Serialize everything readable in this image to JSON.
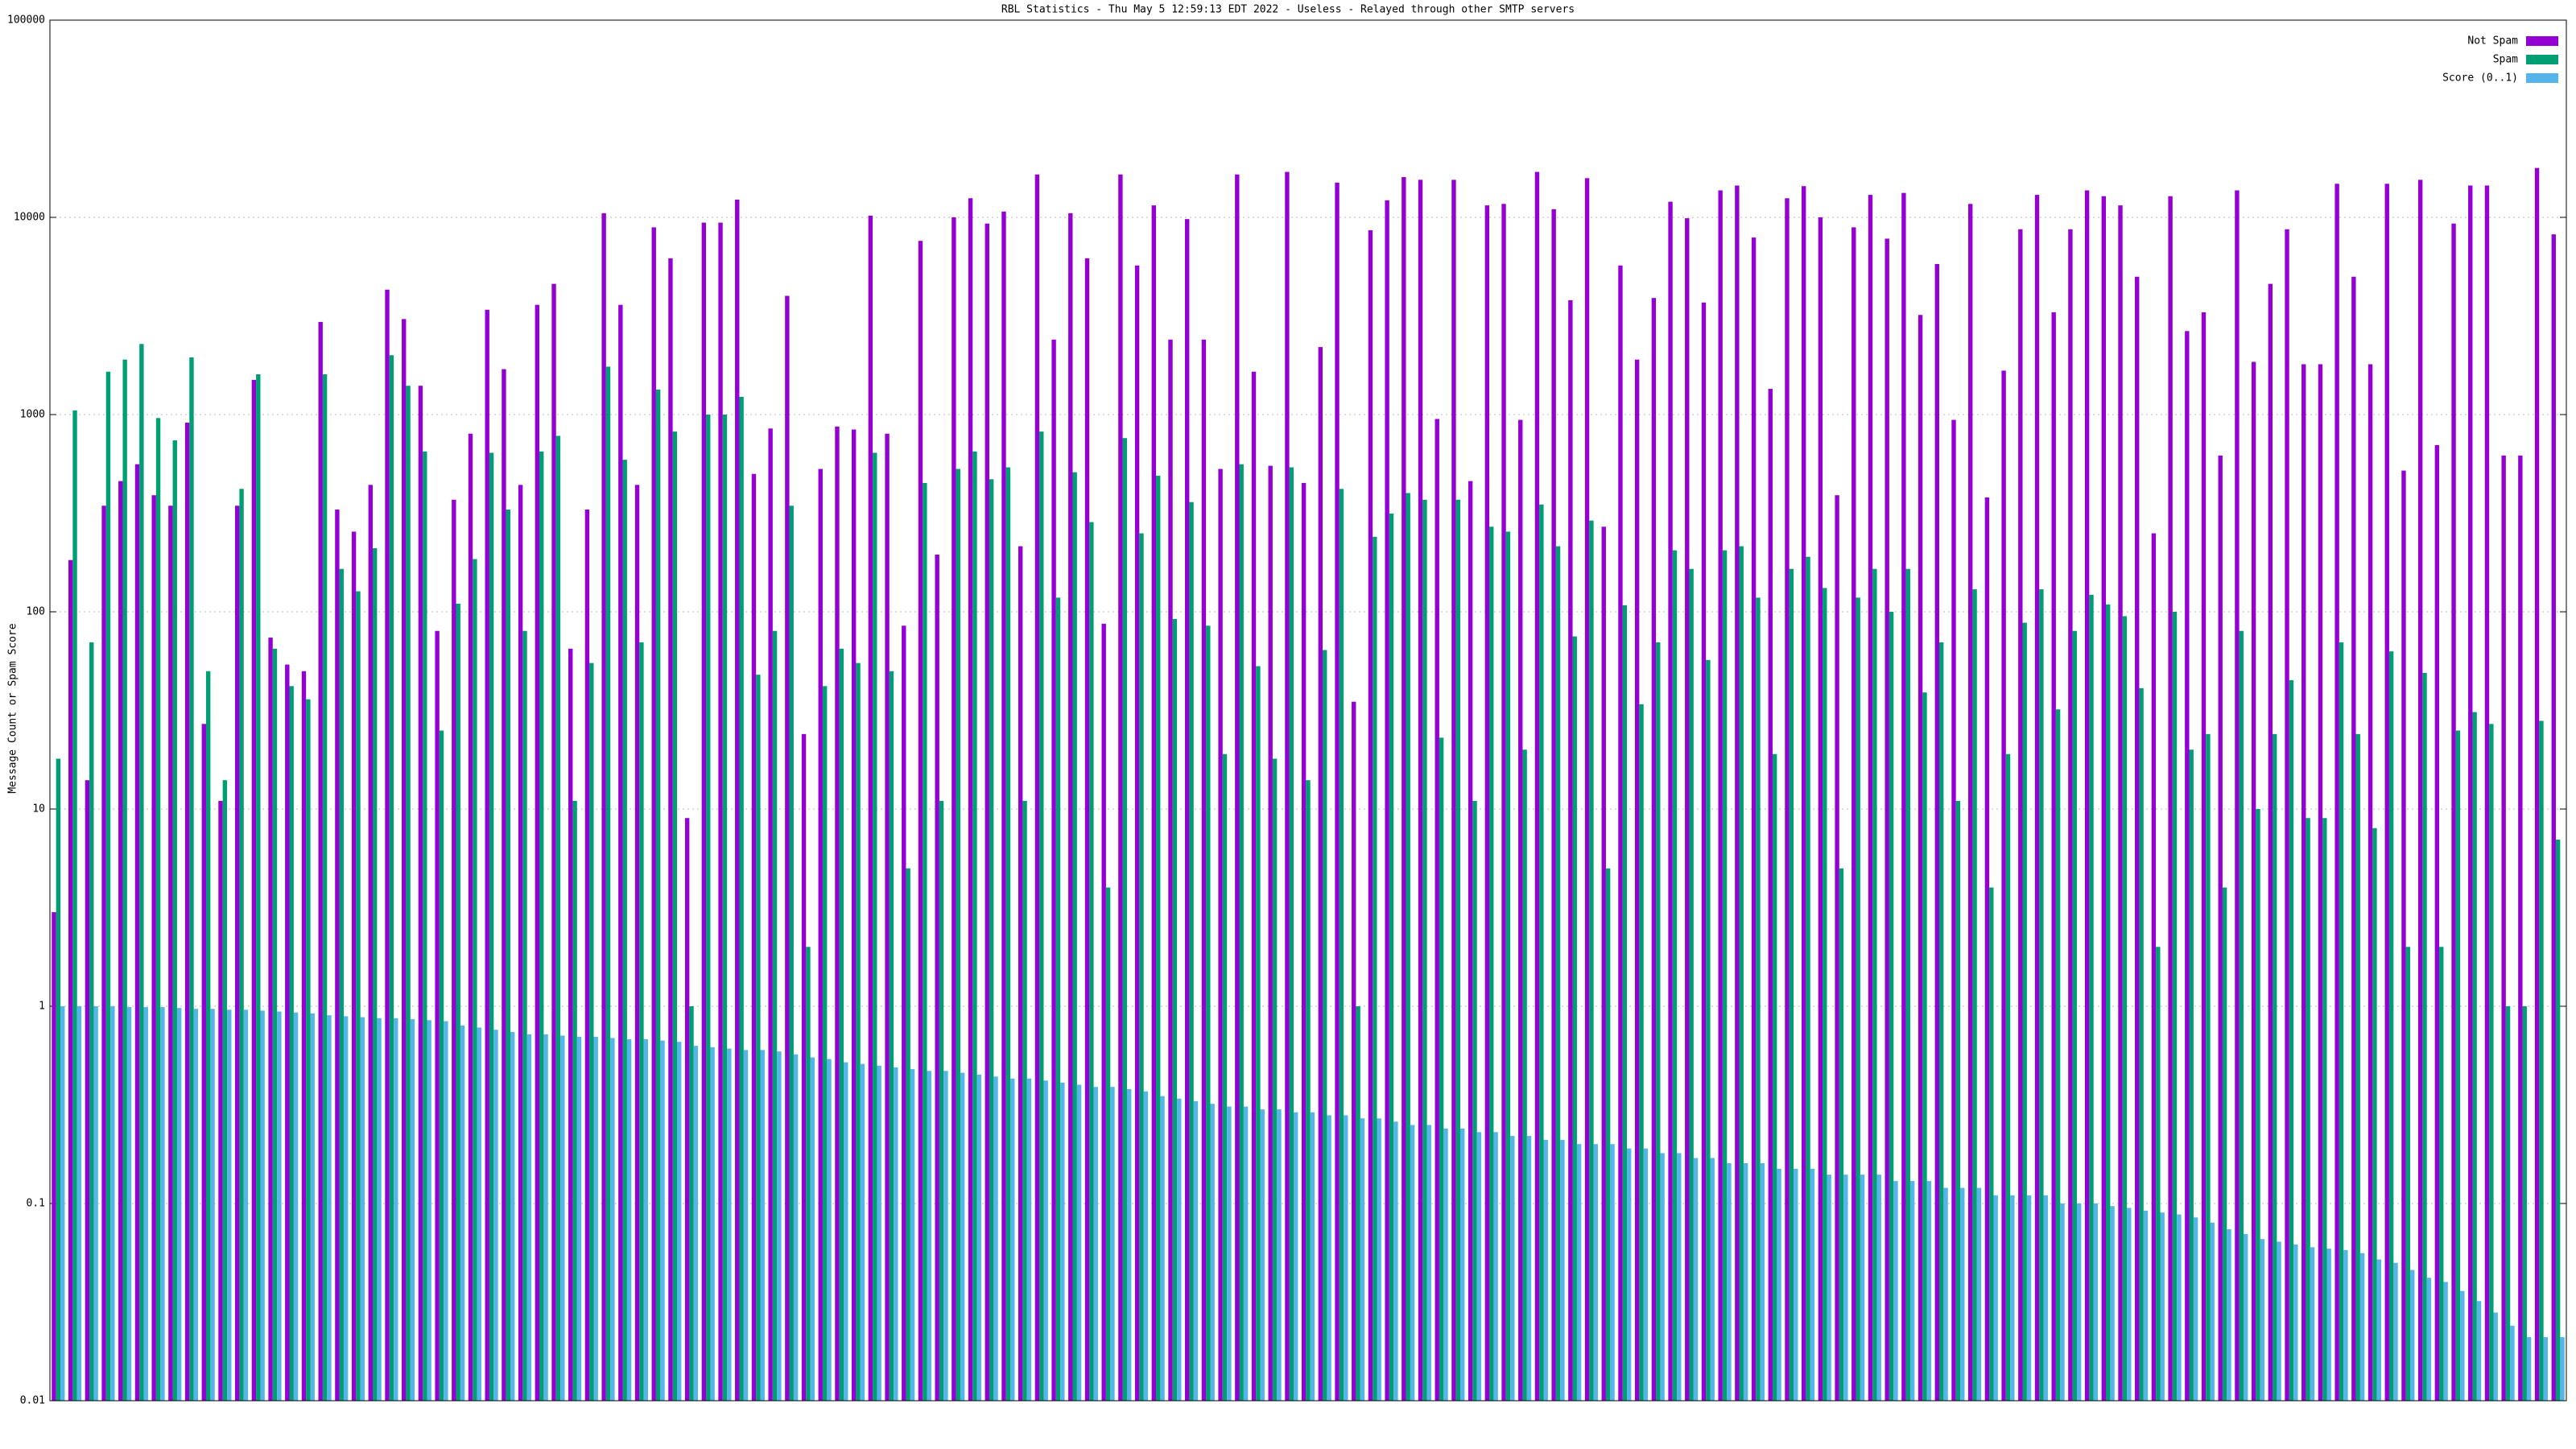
{
  "chart_data": {
    "type": "bar",
    "title": "RBL Statistics - Thu May  5 12:59:13 EDT 2022 - Useless - Relayed through other SMTP servers",
    "y_label": "Message Count or Spam Score",
    "log_y": true,
    "grid": true,
    "legend": "top-right",
    "ylim": [
      0.01,
      100000
    ],
    "yticks": [
      0.01,
      0.1,
      1,
      10,
      100,
      1000,
      10000,
      100000
    ],
    "series": [
      {
        "name": "Not Spam",
        "color": "#9400d3",
        "values": [
          3,
          183,
          14,
          345,
          460,
          560,
          390,
          345,
          910,
          27,
          11,
          345,
          1500,
          74,
          54,
          50,
          2950,
          330,
          255,
          440,
          4300,
          3050,
          1400,
          80,
          370,
          800,
          3400,
          1700,
          440,
          3600,
          4600,
          65,
          330,
          10500,
          3600,
          440,
          8900,
          6200,
          9,
          9400,
          9400,
          12300,
          500,
          850,
          4000,
          24,
          530,
          870,
          840,
          10200,
          800,
          85,
          7600,
          195,
          10000,
          12500,
          9300,
          10700,
          215,
          16500,
          2400,
          10500,
          6200,
          87,
          16500,
          5700,
          11500,
          2400,
          9800,
          2400,
          530,
          16500,
          1650,
          550,
          17000,
          450,
          2200,
          15000,
          35,
          8600,
          12200,
          16000,
          15500,
          950,
          15500,
          460,
          11500,
          11700,
          940,
          17000,
          11000,
          3800,
          15800,
          270,
          5700,
          1900,
          3900,
          12000,
          9900,
          3700,
          13700,
          14500,
          7900,
          1350,
          12500,
          14400,
          10000,
          390,
          8900,
          13000,
          7800,
          13300,
          3200,
          5800,
          940,
          11700,
          380,
          1670,
          8700,
          13000,
          3300,
          8700,
          13700,
          12800,
          11500,
          5000,
          250,
          12800,
          2650,
          3300,
          620,
          13700,
          1850,
          4600,
          8700,
          1800,
          1800,
          14800,
          5000,
          1800,
          14800,
          520,
          15500,
          700,
          9300,
          14500,
          14500,
          620,
          620,
          17800,
          8200
        ]
      },
      {
        "name": "Spam",
        "color": "#009e73",
        "values": [
          18,
          1050,
          70,
          1650,
          1900,
          2280,
          960,
          740,
          1950,
          50,
          14,
          420,
          1600,
          65,
          42,
          36,
          1600,
          165,
          127,
          210,
          2000,
          1400,
          650,
          25,
          110,
          185,
          640,
          330,
          80,
          650,
          780,
          11,
          55,
          1750,
          590,
          70,
          1340,
          820,
          1,
          1000,
          1000,
          1230,
          48,
          80,
          345,
          2,
          42,
          65,
          55,
          640,
          50,
          5,
          450,
          11,
          530,
          650,
          470,
          540,
          11,
          820,
          118,
          510,
          285,
          4,
          760,
          250,
          490,
          92,
          360,
          85,
          19,
          560,
          53,
          18,
          540,
          14,
          64,
          420,
          1,
          240,
          315,
          400,
          370,
          23,
          370,
          11,
          270,
          255,
          20,
          350,
          215,
          75,
          290,
          5,
          108,
          34,
          70,
          205,
          165,
          57,
          205,
          215,
          118,
          19,
          165,
          190,
          132,
          5,
          118,
          165,
          100,
          165,
          39,
          70,
          11,
          130,
          4,
          19,
          88,
          130,
          32,
          80,
          122,
          109,
          95,
          41,
          2,
          100,
          20,
          24,
          4,
          80,
          10,
          24,
          45,
          9,
          9,
          70,
          24,
          8,
          63,
          2,
          49,
          2,
          25,
          31,
          27,
          1,
          1,
          28,
          7
        ]
      },
      {
        "name": "Score (0..1)",
        "color": "#56b4e9",
        "values": [
          1.0,
          1.0,
          1.0,
          1.0,
          0.99,
          0.99,
          0.99,
          0.98,
          0.97,
          0.97,
          0.96,
          0.96,
          0.95,
          0.94,
          0.93,
          0.92,
          0.9,
          0.89,
          0.88,
          0.87,
          0.87,
          0.86,
          0.85,
          0.84,
          0.8,
          0.78,
          0.76,
          0.74,
          0.72,
          0.72,
          0.71,
          0.7,
          0.7,
          0.69,
          0.68,
          0.68,
          0.67,
          0.66,
          0.63,
          0.62,
          0.61,
          0.6,
          0.6,
          0.59,
          0.57,
          0.55,
          0.54,
          0.52,
          0.51,
          0.5,
          0.49,
          0.48,
          0.47,
          0.47,
          0.46,
          0.45,
          0.44,
          0.43,
          0.43,
          0.42,
          0.41,
          0.4,
          0.39,
          0.39,
          0.38,
          0.37,
          0.35,
          0.34,
          0.33,
          0.32,
          0.31,
          0.31,
          0.3,
          0.3,
          0.29,
          0.29,
          0.28,
          0.28,
          0.27,
          0.27,
          0.26,
          0.25,
          0.25,
          0.24,
          0.24,
          0.23,
          0.23,
          0.22,
          0.22,
          0.21,
          0.21,
          0.2,
          0.2,
          0.2,
          0.19,
          0.19,
          0.18,
          0.18,
          0.17,
          0.17,
          0.16,
          0.16,
          0.16,
          0.15,
          0.15,
          0.15,
          0.14,
          0.14,
          0.14,
          0.14,
          0.13,
          0.13,
          0.13,
          0.12,
          0.12,
          0.12,
          0.11,
          0.11,
          0.11,
          0.11,
          0.1,
          0.1,
          0.1,
          0.097,
          0.095,
          0.092,
          0.09,
          0.088,
          0.085,
          0.08,
          0.074,
          0.07,
          0.066,
          0.064,
          0.062,
          0.06,
          0.059,
          0.058,
          0.056,
          0.052,
          0.05,
          0.046,
          0.042,
          0.04,
          0.036,
          0.032,
          0.028,
          0.024,
          0.021,
          0.021,
          0.021
        ]
      }
    ]
  }
}
